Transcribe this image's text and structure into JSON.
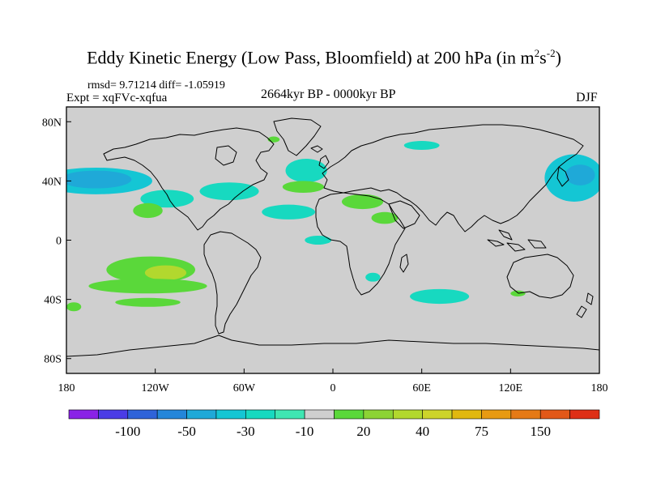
{
  "chart_data": {
    "type": "heatmap",
    "title": "Eddy Kinetic Energy (Low Pass, Bloomfield) at 200 hPa (in m",
    "title_units_sup1": "2",
    "title_units_mid": "s",
    "title_units_sup2": "-2",
    "title_units_close": ")",
    "stats": "rmsd= 9.71214  diff= -1.05919",
    "experiment": "Expt = xqFVc-xqfua",
    "period": "2664kyr BP - 0000kyr BP",
    "season": "DJF",
    "x_ticks": [
      {
        "value": -180,
        "label": "180"
      },
      {
        "value": -120,
        "label": "120W"
      },
      {
        "value": -60,
        "label": "60W"
      },
      {
        "value": 0,
        "label": "0"
      },
      {
        "value": 60,
        "label": "60E"
      },
      {
        "value": 120,
        "label": "120E"
      },
      {
        "value": 180,
        "label": "180"
      }
    ],
    "y_ticks": [
      {
        "value": 80,
        "label": "80N"
      },
      {
        "value": 40,
        "label": "40N"
      },
      {
        "value": 0,
        "label": "0"
      },
      {
        "value": -40,
        "label": "40S"
      },
      {
        "value": -80,
        "label": "80S"
      }
    ],
    "xlim": [
      -180,
      180
    ],
    "ylim": [
      -90,
      90
    ],
    "colorbar": {
      "colors": [
        "#8a22e6",
        "#4b3ce6",
        "#2f63d9",
        "#2486da",
        "#1fa9d8",
        "#14c6d4",
        "#17d9c0",
        "#3fe6b2",
        "#cfcfcf",
        "#5ad83a",
        "#8cd334",
        "#b2d82e",
        "#cdd42a",
        "#e1b80f",
        "#e89a12",
        "#e57a16",
        "#e25818",
        "#de2f16"
      ],
      "labels": [
        {
          "boundary": 1,
          "text": ""
        },
        {
          "boundary": 2,
          "text": "-100"
        },
        {
          "boundary": 3,
          "text": ""
        },
        {
          "boundary": 4,
          "text": "-50"
        },
        {
          "boundary": 5,
          "text": ""
        },
        {
          "boundary": 6,
          "text": "-30"
        },
        {
          "boundary": 7,
          "text": ""
        },
        {
          "boundary": 8,
          "text": "-10"
        },
        {
          "boundary": 9,
          "text": ""
        },
        {
          "boundary": 10,
          "text": "20"
        },
        {
          "boundary": 11,
          "text": ""
        },
        {
          "boundary": 12,
          "text": "40"
        },
        {
          "boundary": 13,
          "text": ""
        },
        {
          "boundary": 14,
          "text": "75"
        },
        {
          "boundary": 15,
          "text": ""
        },
        {
          "boundary": 16,
          "text": "150"
        },
        {
          "boundary": 17,
          "text": ""
        }
      ]
    },
    "anomaly_regions": [
      {
        "name": "north-pacific-negative",
        "lon": -160,
        "lat": 40,
        "rlon": 38,
        "rlat": 9,
        "level": -20
      },
      {
        "name": "north-pacific-core",
        "lon": -162,
        "lat": 41,
        "rlon": 14,
        "rlat": 4,
        "level": -45
      },
      {
        "name": "north-pacific-mid",
        "lon": -160,
        "lat": 41,
        "rlon": 24,
        "rlat": 6,
        "level": -30
      },
      {
        "name": "east-pacific-negative",
        "lon": -112,
        "lat": 28,
        "rlon": 18,
        "rlat": 6,
        "level": -12
      },
      {
        "name": "north-america-negative",
        "lon": -70,
        "lat": 33,
        "rlon": 20,
        "rlat": 6,
        "level": -12
      },
      {
        "name": "north-atlantic-negative",
        "lon": -18,
        "lat": 47,
        "rlon": 14,
        "rlat": 8,
        "level": -12
      },
      {
        "name": "mid-atlantic-negative",
        "lon": -30,
        "lat": 19,
        "rlon": 18,
        "rlat": 5,
        "level": -12
      },
      {
        "name": "tropical-atlantic-negative",
        "lon": -10,
        "lat": 0,
        "rlon": 9,
        "rlat": 3,
        "level": -12
      },
      {
        "name": "arctic-russia-negative",
        "lon": 60,
        "lat": 64,
        "rlon": 12,
        "rlat": 3,
        "level": -12
      },
      {
        "name": "south-indian-negative",
        "lon": 72,
        "lat": -38,
        "rlon": 20,
        "rlat": 5,
        "level": -12
      },
      {
        "name": "south-atlantic-negative",
        "lon": 27,
        "lat": -25,
        "rlon": 5,
        "rlat": 3,
        "level": -12
      },
      {
        "name": "west-pacific-negative",
        "lon": 163,
        "lat": 42,
        "rlon": 20,
        "rlat": 16,
        "level": -20
      },
      {
        "name": "west-pacific-mid",
        "lon": 167,
        "lat": 44,
        "rlon": 10,
        "rlat": 7,
        "level": -30
      },
      {
        "name": "south-pacific-positive",
        "lon": -123,
        "lat": -20,
        "rlon": 30,
        "rlat": 9,
        "level": 15
      },
      {
        "name": "south-pacific-stronger",
        "lon": -113,
        "lat": -22,
        "rlon": 14,
        "rlat": 5,
        "level": 30
      },
      {
        "name": "south-pacific-belt",
        "lon": -125,
        "lat": -31,
        "rlon": 40,
        "rlat": 5,
        "level": 15
      },
      {
        "name": "east-pacific-positive",
        "lon": -125,
        "lat": 20,
        "rlon": 10,
        "rlat": 5,
        "level": 15
      },
      {
        "name": "southern-ocean-positive",
        "lon": -125,
        "lat": -42,
        "rlon": 22,
        "rlat": 3,
        "level": 15
      },
      {
        "name": "atlantic-positive",
        "lon": -20,
        "lat": 36,
        "rlon": 14,
        "rlat": 4,
        "level": 15
      },
      {
        "name": "mediterranean-positive",
        "lon": 20,
        "lat": 26,
        "rlon": 14,
        "rlat": 5,
        "level": 15
      },
      {
        "name": "arabia-positive",
        "lon": 35,
        "lat": 15,
        "rlon": 9,
        "rlat": 4,
        "level": 15
      },
      {
        "name": "greenland-positive",
        "lon": -40,
        "lat": 68,
        "rlon": 4,
        "rlat": 2,
        "level": 15
      },
      {
        "name": "south-pacific-west-positive",
        "lon": -175,
        "lat": -45,
        "rlon": 5,
        "rlat": 3,
        "level": 15
      },
      {
        "name": "australia-positive",
        "lon": 125,
        "lat": -36,
        "rlon": 5,
        "rlat": 2,
        "level": 15
      }
    ],
    "coastline_note": "World continental outlines"
  }
}
